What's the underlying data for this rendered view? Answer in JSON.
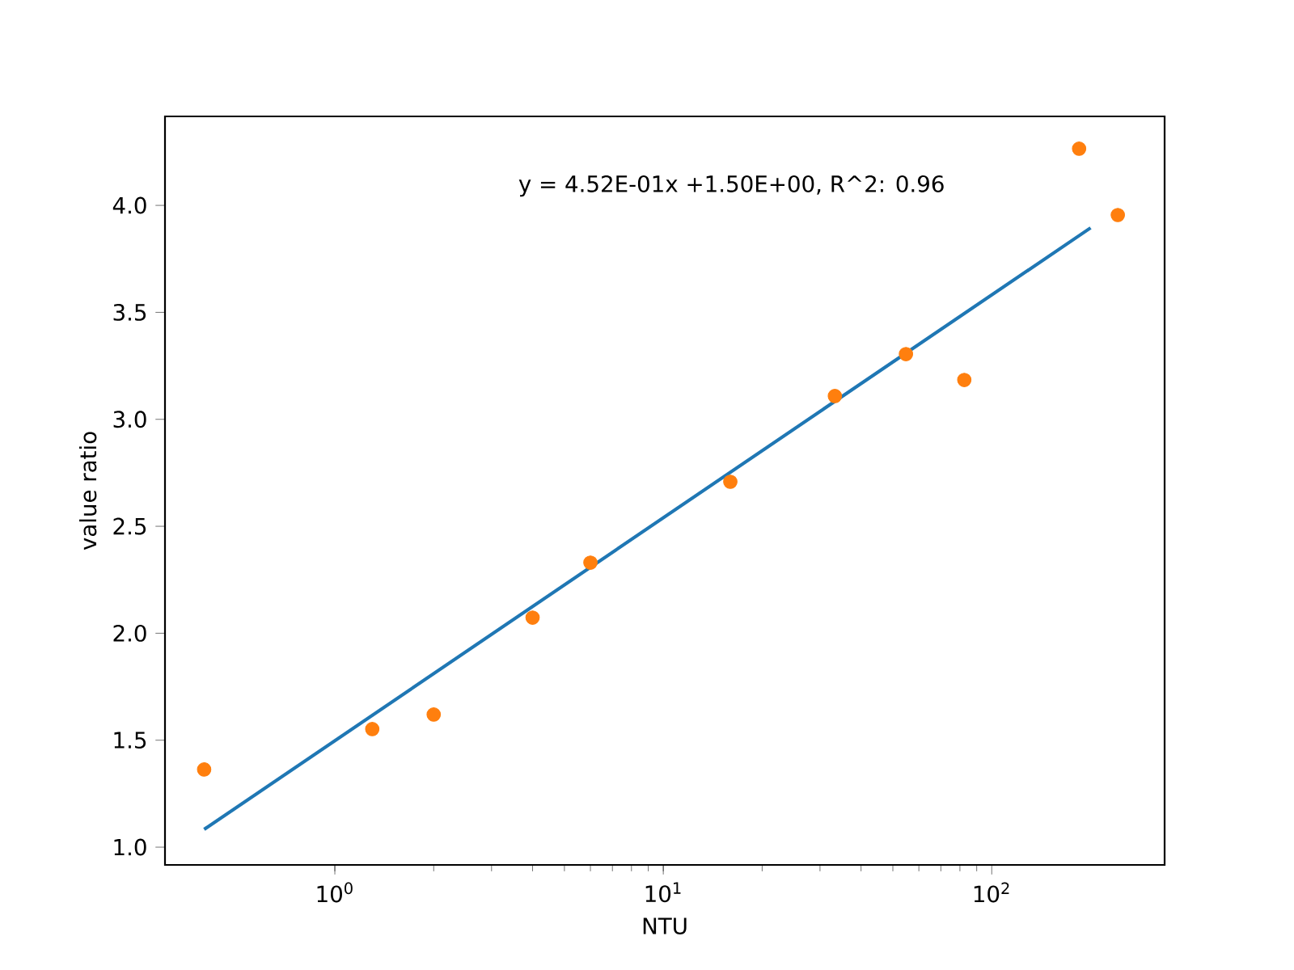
{
  "chart_data": {
    "type": "scatter",
    "xlabel": "NTU",
    "ylabel": "value ratio",
    "log": "x",
    "xlim": [
      0.304,
      336
    ],
    "ylim": [
      0.917,
      4.416
    ],
    "xticks": [
      {
        "value": 1,
        "label": "10$^{0}$"
      },
      {
        "value": 10,
        "label": "10$^{1}$"
      },
      {
        "value": 100,
        "label": "10$^{2}$"
      }
    ],
    "yticks": [
      {
        "value": 1.0,
        "label": "1.0"
      },
      {
        "value": 1.5,
        "label": "1.5"
      },
      {
        "value": 2.0,
        "label": "2.0"
      },
      {
        "value": 2.5,
        "label": "2.5"
      },
      {
        "value": 3.0,
        "label": "3.0"
      },
      {
        "value": 3.5,
        "label": "3.5"
      },
      {
        "value": 4.0,
        "label": "4.0"
      }
    ],
    "annotations": [
      "y = 4.52E-01x +1.50E+00, R^2: 0.96"
    ],
    "series": [
      {
        "type": "line",
        "color": "#1f77b4",
        "marker": "none",
        "x": [
          0.4,
          200
        ],
        "values": [
          1.083,
          3.895
        ]
      },
      {
        "color": "#ff7f0e",
        "marker": "circle",
        "x": [
          0.4,
          1.3,
          2,
          4,
          6,
          16,
          33.3,
          54.8,
          82.5,
          184.5,
          242
        ],
        "values": [
          1.363,
          1.552,
          1.62,
          2.073,
          2.33,
          2.708,
          3.109,
          3.305,
          3.184,
          4.265,
          3.955
        ]
      }
    ]
  }
}
